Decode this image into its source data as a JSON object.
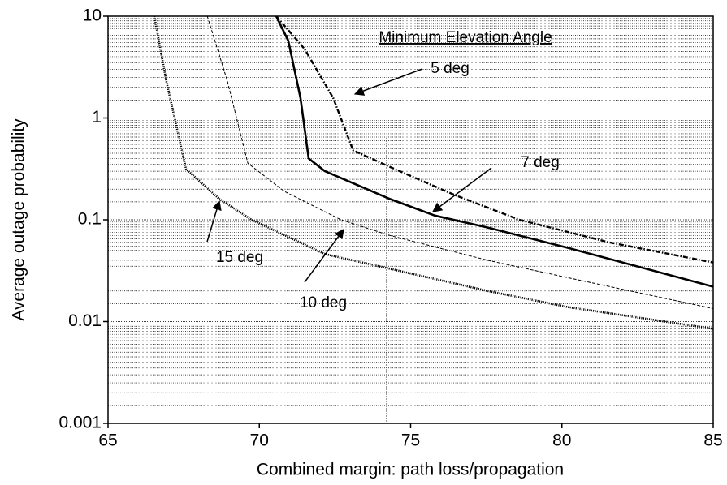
{
  "chart_data": {
    "type": "line",
    "xlabel": "Combined margin: path loss/propagation",
    "ylabel": "Average outage probability",
    "xlim": [
      65,
      85
    ],
    "ylim": [
      0.001,
      10
    ],
    "xticks": [
      65,
      70,
      75,
      80,
      85
    ],
    "yticks": [
      0.001,
      0.01,
      0.1,
      1,
      10
    ],
    "yscale": "log",
    "grid": true,
    "vline": 74.2,
    "annotations": [
      "Minimum Elevation Angle",
      "5 deg",
      "7 deg",
      "10 deg",
      "15 deg"
    ],
    "series": [
      {
        "name": "5 deg",
        "color": "#000000",
        "style": "dashdot",
        "x": [
          70.56,
          71.5,
          72.44,
          73.1,
          74.32,
          76.46,
          78.6,
          81.56,
          85
        ],
        "values": [
          10,
          4.75,
          1.58,
          0.48,
          0.33,
          0.175,
          0.1,
          0.06,
          0.038
        ]
      },
      {
        "name": "7 deg",
        "color": "#000000",
        "style": "solid",
        "x": [
          70.56,
          70.96,
          71.36,
          71.63,
          72.17,
          74.32,
          75.8,
          77.54,
          80.2,
          85
        ],
        "values": [
          10,
          5.7,
          1.58,
          0.4,
          0.3,
          0.16,
          0.11,
          0.084,
          0.053,
          0.022
        ]
      },
      {
        "name": "10 deg",
        "color": "#000000",
        "style": "dashed",
        "x": [
          68.28,
          68.95,
          69.62,
          70.83,
          72.7,
          74.32,
          77.54,
          80.2,
          85
        ],
        "values": [
          10,
          2.28,
          0.36,
          0.19,
          0.1,
          0.07,
          0.04,
          0.027,
          0.0134
        ]
      },
      {
        "name": "15 deg",
        "color": "#000000",
        "style": "dotted",
        "x": [
          66.53,
          66.93,
          67.58,
          68.68,
          69.75,
          72.17,
          74.32,
          77.54,
          80.2,
          85
        ],
        "values": [
          10,
          2.28,
          0.315,
          0.16,
          0.1,
          0.046,
          0.033,
          0.02,
          0.0139,
          0.0085
        ]
      }
    ]
  }
}
